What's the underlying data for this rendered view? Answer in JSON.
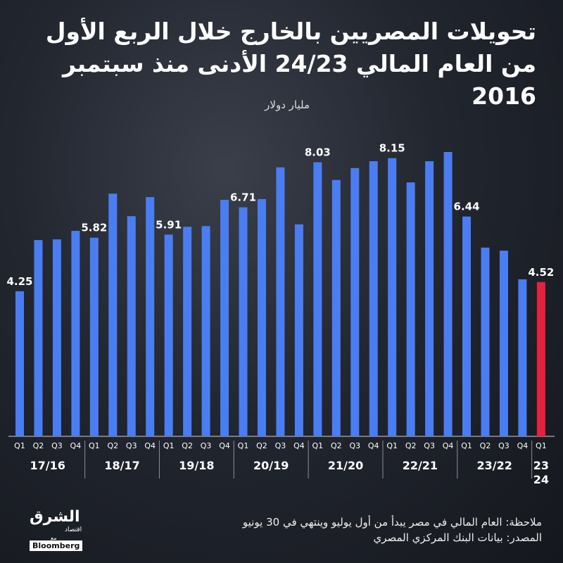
{
  "chart_data": {
    "type": "bar",
    "title": "تحويلات المصريين بالخارج خلال الربع الأول من العام المالي 24/23 الأدنى منذ سبتمبر 2016",
    "subtitle": "مليار دولار",
    "groups": [
      {
        "name": "17/16",
        "categories": [
          "Q1",
          "Q2",
          "Q3",
          "Q4"
        ]
      },
      {
        "name": "18/17",
        "categories": [
          "Q1",
          "Q2",
          "Q3",
          "Q4"
        ]
      },
      {
        "name": "19/18",
        "categories": [
          "Q1",
          "Q2",
          "Q3",
          "Q4"
        ]
      },
      {
        "name": "20/19",
        "categories": [
          "Q1",
          "Q2",
          "Q3",
          "Q4"
        ]
      },
      {
        "name": "21/20",
        "categories": [
          "Q1",
          "Q2",
          "Q3",
          "Q4"
        ]
      },
      {
        "name": "22/21",
        "categories": [
          "Q1",
          "Q2",
          "Q3",
          "Q4"
        ]
      },
      {
        "name": "23/22",
        "categories": [
          "Q1",
          "Q2",
          "Q3",
          "Q4"
        ]
      },
      {
        "name": "23\n24",
        "categories": [
          "Q1"
        ]
      }
    ],
    "values": [
      4.25,
      5.75,
      5.77,
      6.02,
      5.82,
      7.11,
      6.45,
      7.01,
      5.91,
      6.14,
      6.16,
      6.93,
      6.71,
      6.95,
      7.88,
      6.21,
      8.03,
      7.51,
      7.86,
      8.06,
      8.15,
      7.44,
      8.06,
      8.33,
      6.44,
      5.53,
      5.44,
      4.6,
      4.52
    ],
    "value_labels": [
      "4.25",
      null,
      null,
      null,
      "5.82",
      null,
      null,
      null,
      "5.91",
      null,
      null,
      null,
      "6.71",
      null,
      null,
      null,
      "8.03",
      null,
      null,
      null,
      "8.15",
      null,
      null,
      null,
      "6.44",
      null,
      null,
      null,
      "4.52"
    ],
    "colors": [
      "#4b7df2",
      "#4b7df2",
      "#4b7df2",
      "#4b7df2",
      "#4b7df2",
      "#4b7df2",
      "#4b7df2",
      "#4b7df2",
      "#4b7df2",
      "#4b7df2",
      "#4b7df2",
      "#4b7df2",
      "#4b7df2",
      "#4b7df2",
      "#4b7df2",
      "#4b7df2",
      "#4b7df2",
      "#4b7df2",
      "#4b7df2",
      "#4b7df2",
      "#4b7df2",
      "#4b7df2",
      "#4b7df2",
      "#4b7df2",
      "#4b7df2",
      "#4b7df2",
      "#4b7df2",
      "#4b7df2",
      "#e5213e"
    ],
    "ylim": [
      0,
      9
    ],
    "notes": [
      "ملاحظة: العام المالي في مصر يبدأ من أول يوليو وينتهي في 30 يونيو",
      "المصدر: بيانات البنك المركزي المصري"
    ],
    "logo": {
      "name": "الشرق",
      "tag": "اقتصاد",
      "partner_prefix": "مع",
      "partner": "Bloomberg"
    }
  }
}
